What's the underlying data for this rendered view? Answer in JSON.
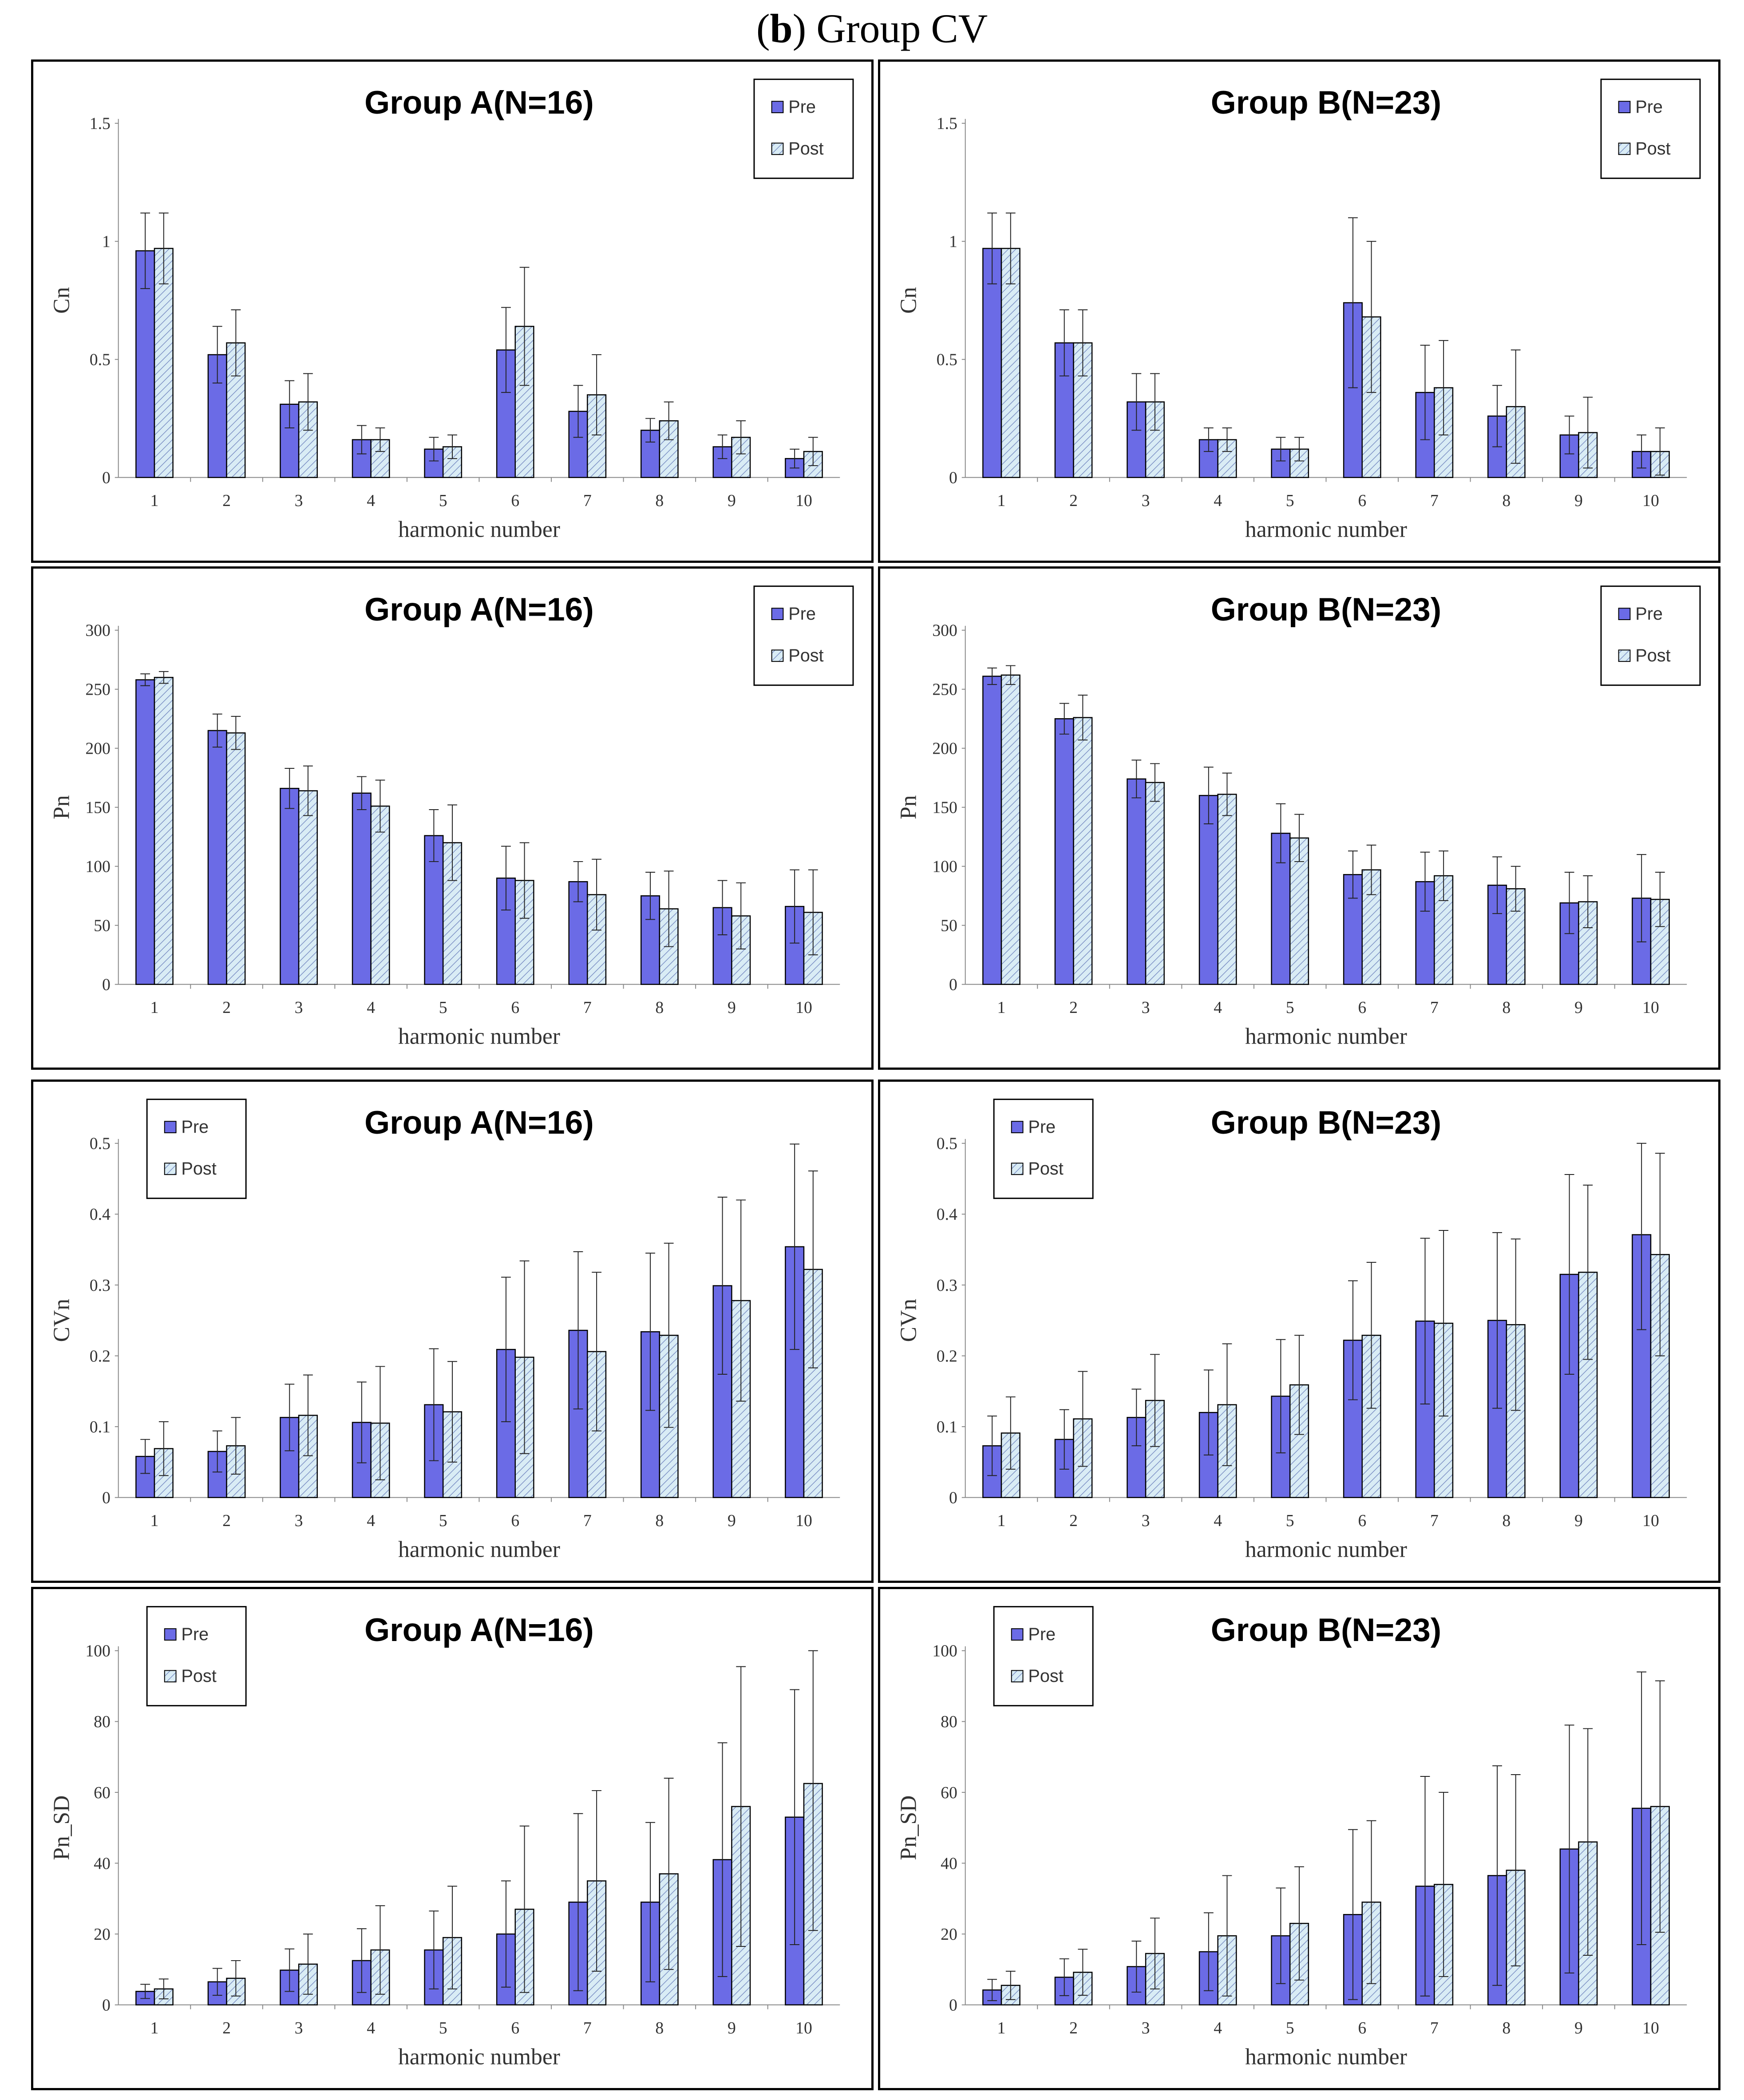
{
  "figure": {
    "label": "b",
    "title": "Group CV"
  },
  "colors": {
    "pre": "#6b6be6",
    "post_fill": "#d9ecf5",
    "post_hatch": "#7b8fc4",
    "axis": "#888888",
    "bar_stroke": "#000000"
  },
  "chart_data": [
    {
      "id": "chart-cn-a",
      "type": "bar",
      "title": "Group A(N=16)",
      "xlabel": "harmonic number",
      "ylabel": "Cn",
      "categories": [
        "1",
        "2",
        "3",
        "4",
        "5",
        "6",
        "7",
        "8",
        "9",
        "10"
      ],
      "ylim": [
        0,
        1.5
      ],
      "yticks": [
        0,
        0.5,
        1,
        1.5
      ],
      "ytick_labels": [
        "0",
        "0.5",
        "1",
        "1.5"
      ],
      "legend": {
        "position": "top-right",
        "labels": [
          "Pre",
          "Post"
        ]
      },
      "series": [
        {
          "name": "Pre",
          "values": [
            0.96,
            0.52,
            0.31,
            0.16,
            0.12,
            0.54,
            0.28,
            0.2,
            0.13,
            0.08
          ],
          "errors": [
            0.16,
            0.12,
            0.1,
            0.06,
            0.05,
            0.18,
            0.11,
            0.05,
            0.05,
            0.04
          ]
        },
        {
          "name": "Post",
          "values": [
            0.97,
            0.57,
            0.32,
            0.16,
            0.13,
            0.64,
            0.35,
            0.24,
            0.17,
            0.11
          ],
          "errors": [
            0.15,
            0.14,
            0.12,
            0.05,
            0.05,
            0.25,
            0.17,
            0.08,
            0.07,
            0.06
          ]
        }
      ]
    },
    {
      "id": "chart-cn-b",
      "type": "bar",
      "title": "Group B(N=23)",
      "xlabel": "harmonic number",
      "ylabel": "Cn",
      "categories": [
        "1",
        "2",
        "3",
        "4",
        "5",
        "6",
        "7",
        "8",
        "9",
        "10"
      ],
      "ylim": [
        0,
        1.5
      ],
      "yticks": [
        0,
        0.5,
        1,
        1.5
      ],
      "ytick_labels": [
        "0",
        "0.5",
        "1",
        "1.5"
      ],
      "legend": {
        "position": "top-right",
        "labels": [
          "Pre",
          "Post"
        ]
      },
      "series": [
        {
          "name": "Pre",
          "values": [
            0.97,
            0.57,
            0.32,
            0.16,
            0.12,
            0.74,
            0.36,
            0.26,
            0.18,
            0.11
          ],
          "errors": [
            0.15,
            0.14,
            0.12,
            0.05,
            0.05,
            0.36,
            0.2,
            0.13,
            0.08,
            0.07
          ]
        },
        {
          "name": "Post",
          "values": [
            0.97,
            0.57,
            0.32,
            0.16,
            0.12,
            0.68,
            0.38,
            0.3,
            0.19,
            0.11
          ],
          "errors": [
            0.15,
            0.14,
            0.12,
            0.05,
            0.05,
            0.32,
            0.2,
            0.24,
            0.15,
            0.1
          ]
        }
      ]
    },
    {
      "id": "chart-pn-a",
      "type": "bar",
      "title": "Group A(N=16)",
      "xlabel": "harmonic number",
      "ylabel": "Pn",
      "categories": [
        "1",
        "2",
        "3",
        "4",
        "5",
        "6",
        "7",
        "8",
        "9",
        "10"
      ],
      "ylim": [
        0,
        300
      ],
      "yticks": [
        0,
        50,
        100,
        150,
        200,
        250,
        300
      ],
      "ytick_labels": [
        "0",
        "50",
        "100",
        "150",
        "200",
        "250",
        "300"
      ],
      "legend": {
        "position": "top-right",
        "labels": [
          "Pre",
          "Post"
        ]
      },
      "series": [
        {
          "name": "Pre",
          "values": [
            258,
            215,
            166,
            162,
            126,
            90,
            87,
            75,
            65,
            66
          ],
          "errors": [
            5,
            14,
            17,
            14,
            22,
            27,
            17,
            20,
            23,
            31
          ]
        },
        {
          "name": "Post",
          "values": [
            260,
            213,
            164,
            151,
            120,
            88,
            76,
            64,
            58,
            61
          ],
          "errors": [
            5,
            14,
            21,
            22,
            32,
            32,
            30,
            32,
            28,
            36
          ]
        }
      ]
    },
    {
      "id": "chart-pn-b",
      "type": "bar",
      "title": "Group B(N=23)",
      "xlabel": "harmonic number",
      "ylabel": "Pn",
      "categories": [
        "1",
        "2",
        "3",
        "4",
        "5",
        "6",
        "7",
        "8",
        "9",
        "10"
      ],
      "ylim": [
        0,
        300
      ],
      "yticks": [
        0,
        50,
        100,
        150,
        200,
        250,
        300
      ],
      "ytick_labels": [
        "0",
        "50",
        "100",
        "150",
        "200",
        "250",
        "300"
      ],
      "legend": {
        "position": "top-right",
        "labels": [
          "Pre",
          "Post"
        ]
      },
      "series": [
        {
          "name": "Pre",
          "values": [
            261,
            225,
            174,
            160,
            128,
            93,
            87,
            84,
            69,
            73
          ],
          "errors": [
            7,
            13,
            16,
            24,
            25,
            20,
            25,
            24,
            26,
            37
          ]
        },
        {
          "name": "Post",
          "values": [
            262,
            226,
            171,
            161,
            124,
            97,
            92,
            81,
            70,
            72
          ],
          "errors": [
            8,
            19,
            16,
            18,
            20,
            21,
            21,
            19,
            22,
            23
          ]
        }
      ]
    },
    {
      "id": "chart-cvn-a",
      "type": "bar",
      "title": "Group A(N=16)",
      "xlabel": "harmonic number",
      "ylabel": "CVn",
      "categories": [
        "1",
        "2",
        "3",
        "4",
        "5",
        "6",
        "7",
        "8",
        "9",
        "10"
      ],
      "ylim": [
        0,
        0.5
      ],
      "yticks": [
        0,
        0.1,
        0.2,
        0.3,
        0.4,
        0.5
      ],
      "ytick_labels": [
        "0",
        "0.1",
        "0.2",
        "0.3",
        "0.4",
        "0.5"
      ],
      "legend": {
        "position": "top-left",
        "labels": [
          "Pre",
          "Post"
        ]
      },
      "series": [
        {
          "name": "Pre",
          "values": [
            0.058,
            0.065,
            0.113,
            0.106,
            0.131,
            0.209,
            0.236,
            0.234,
            0.299,
            0.354
          ],
          "errors": [
            0.024,
            0.029,
            0.047,
            0.057,
            0.079,
            0.102,
            0.111,
            0.111,
            0.125,
            0.145
          ]
        },
        {
          "name": "Post",
          "values": [
            0.069,
            0.073,
            0.116,
            0.105,
            0.121,
            0.198,
            0.206,
            0.229,
            0.278,
            0.322
          ],
          "errors": [
            0.038,
            0.04,
            0.057,
            0.08,
            0.071,
            0.136,
            0.112,
            0.13,
            0.142,
            0.139
          ]
        }
      ]
    },
    {
      "id": "chart-cvn-b",
      "type": "bar",
      "title": "Group B(N=23)",
      "xlabel": "harmonic number",
      "ylabel": "CVn",
      "categories": [
        "1",
        "2",
        "3",
        "4",
        "5",
        "6",
        "7",
        "8",
        "9",
        "10"
      ],
      "ylim": [
        0,
        0.5
      ],
      "yticks": [
        0,
        0.1,
        0.2,
        0.3,
        0.4,
        0.5
      ],
      "ytick_labels": [
        "0",
        "0.1",
        "0.2",
        "0.3",
        "0.4",
        "0.5"
      ],
      "legend": {
        "position": "top-left",
        "labels": [
          "Pre",
          "Post"
        ]
      },
      "series": [
        {
          "name": "Pre",
          "values": [
            0.073,
            0.082,
            0.113,
            0.12,
            0.143,
            0.222,
            0.249,
            0.25,
            0.315,
            0.371
          ],
          "errors": [
            0.042,
            0.042,
            0.04,
            0.06,
            0.08,
            0.084,
            0.117,
            0.124,
            0.141,
            0.134
          ]
        },
        {
          "name": "Post",
          "values": [
            0.091,
            0.111,
            0.137,
            0.131,
            0.159,
            0.229,
            0.246,
            0.244,
            0.318,
            0.343
          ],
          "errors": [
            0.051,
            0.067,
            0.065,
            0.086,
            0.07,
            0.103,
            0.131,
            0.121,
            0.123,
            0.143
          ]
        }
      ]
    },
    {
      "id": "chart-pnsd-a",
      "type": "bar",
      "title": "Group A(N=16)",
      "xlabel": "harmonic number",
      "ylabel": "Pn_SD",
      "categories": [
        "1",
        "2",
        "3",
        "4",
        "5",
        "6",
        "7",
        "8",
        "9",
        "10"
      ],
      "ylim": [
        0,
        100
      ],
      "yticks": [
        0,
        20,
        40,
        60,
        80,
        100
      ],
      "ytick_labels": [
        "0",
        "20",
        "40",
        "60",
        "80",
        "100"
      ],
      "legend": {
        "position": "top-left",
        "labels": [
          "Pre",
          "Post"
        ]
      },
      "series": [
        {
          "name": "Pre",
          "values": [
            3.8,
            6.5,
            9.8,
            12.5,
            15.5,
            20,
            29,
            29,
            41,
            53
          ],
          "errors": [
            2.0,
            3.8,
            6.0,
            9.0,
            11.0,
            15,
            25,
            22.5,
            33,
            36
          ]
        },
        {
          "name": "Post",
          "values": [
            4.5,
            7.5,
            11.5,
            15.5,
            19,
            27,
            35,
            37,
            56,
            62.5
          ],
          "errors": [
            2.8,
            5.0,
            8.5,
            12.5,
            14.5,
            23.5,
            25.5,
            27,
            39.5,
            41.5
          ]
        }
      ]
    },
    {
      "id": "chart-pnsd-b",
      "type": "bar",
      "title": "Group B(N=23)",
      "xlabel": "harmonic number",
      "ylabel": "Pn_SD",
      "categories": [
        "1",
        "2",
        "3",
        "4",
        "5",
        "6",
        "7",
        "8",
        "9",
        "10"
      ],
      "ylim": [
        0,
        100
      ],
      "yticks": [
        0,
        20,
        40,
        60,
        80,
        100
      ],
      "ytick_labels": [
        "0",
        "20",
        "40",
        "60",
        "80",
        "100"
      ],
      "legend": {
        "position": "top-left",
        "labels": [
          "Pre",
          "Post"
        ]
      },
      "series": [
        {
          "name": "Pre",
          "values": [
            4.2,
            7.8,
            10.8,
            15,
            19.5,
            25.5,
            33.5,
            36.5,
            44,
            55.5
          ],
          "errors": [
            3.0,
            5.2,
            7.2,
            11,
            13.5,
            24,
            31,
            31,
            35,
            38.5
          ]
        },
        {
          "name": "Post",
          "values": [
            5.5,
            9.2,
            14.5,
            19.5,
            23,
            29,
            34,
            38,
            46,
            56
          ],
          "errors": [
            4.0,
            6.5,
            10,
            17,
            16,
            23,
            26,
            27,
            32,
            35.5
          ]
        }
      ]
    }
  ]
}
